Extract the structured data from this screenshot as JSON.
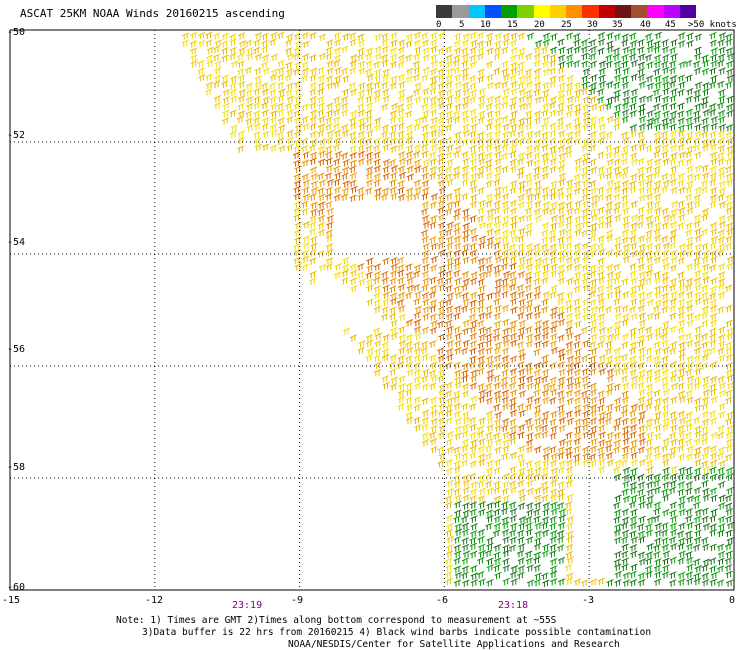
{
  "title": "ASCAT 25KM NOAA Winds 20160215 ascending",
  "colorbar": {
    "labels": [
      "0",
      "5",
      "10",
      "15",
      "20",
      "25",
      "30",
      "35",
      "40",
      "45",
      ">50 knots"
    ],
    "colors": [
      "#3a3a3a",
      "#9a9a9a",
      "#00c8ff",
      "#0050ff",
      "#00a000",
      "#7ed000",
      "#ffff00",
      "#ffd000",
      "#ff9000",
      "#ff3000",
      "#c00000",
      "#6e1414",
      "#a05030",
      "#ff00ff",
      "#c000ff",
      "#5000a0"
    ]
  },
  "axes": {
    "lat_labels": [
      "-50",
      "-52",
      "-54",
      "-56",
      "-58",
      "-60"
    ],
    "lon_labels": [
      "-15",
      "-12",
      "-9",
      "-6",
      "-3",
      "0"
    ],
    "time_labels": [
      "23:19",
      "23:18"
    ]
  },
  "map_data": {
    "lon_range": [
      -15,
      0
    ],
    "lat_range": [
      -60,
      -50
    ],
    "grid": "dotted",
    "swath": "wind barbs colored by speed; yellow to orange 20-30 knots across center, green 15-20 knots in northeast and southeast corners"
  },
  "notes": {
    "line1": "Note: 1) Times are GMT 2)Times along bottom correspond to measurement at ~55S",
    "line2": "3)Data buffer is 22 hrs from 20160215 4) Black wind barbs indicate possible contamination",
    "line3": "NOAA/NESDIS/Center for Satellite Applications and Research"
  }
}
